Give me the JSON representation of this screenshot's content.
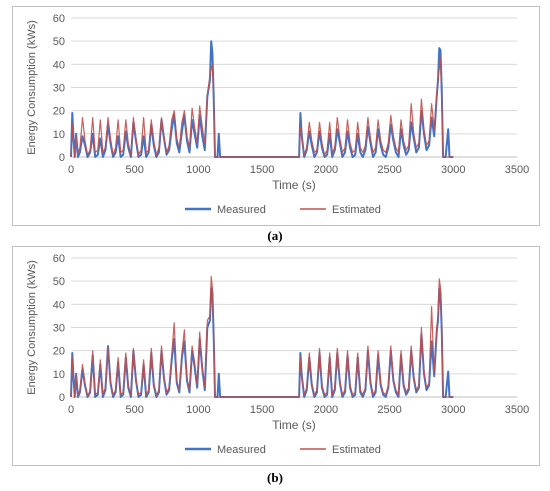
{
  "colors": {
    "measured": "#4472c4",
    "estimated": "#c0504d",
    "grid": "#d9d9d9",
    "axis_text": "#595959"
  },
  "chart_data": [
    {
      "type": "line",
      "caption": "(a)",
      "xlabel": "Time (s)",
      "ylabel": "Energy Consumption (kWs)",
      "xlim": [
        0,
        3500
      ],
      "ylim": [
        0,
        60
      ],
      "x_ticks": [
        0,
        500,
        1000,
        1500,
        2000,
        2500,
        3000,
        3500
      ],
      "y_ticks": [
        0,
        10,
        20,
        30,
        40,
        50,
        60
      ],
      "grid": "horizontal",
      "legend_position": "bottom",
      "series": [
        {
          "name": "Measured",
          "color": "#4472c4",
          "x": [
            0,
            10,
            20,
            30,
            40,
            55,
            70,
            90,
            110,
            130,
            150,
            170,
            190,
            210,
            230,
            250,
            270,
            290,
            310,
            330,
            350,
            370,
            390,
            410,
            430,
            450,
            470,
            490,
            510,
            530,
            550,
            570,
            590,
            610,
            630,
            650,
            670,
            690,
            710,
            730,
            750,
            770,
            790,
            810,
            830,
            850,
            870,
            890,
            910,
            930,
            950,
            970,
            990,
            1010,
            1030,
            1050,
            1070,
            1090,
            1100,
            1110,
            1120,
            1130,
            1150,
            1160,
            1170,
            1200,
            1300,
            1400,
            1500,
            1600,
            1700,
            1790,
            1800,
            1810,
            1830,
            1850,
            1870,
            1890,
            1910,
            1930,
            1950,
            1970,
            1990,
            2010,
            2030,
            2050,
            2070,
            2090,
            2110,
            2130,
            2150,
            2170,
            2190,
            2210,
            2230,
            2250,
            2270,
            2290,
            2310,
            2330,
            2350,
            2370,
            2390,
            2410,
            2430,
            2450,
            2470,
            2490,
            2510,
            2530,
            2550,
            2570,
            2590,
            2610,
            2630,
            2650,
            2670,
            2690,
            2710,
            2730,
            2750,
            2770,
            2790,
            2810,
            2830,
            2850,
            2870,
            2880,
            2890,
            2900,
            2910,
            2920,
            2940,
            2960,
            2970,
            2990,
            3000
          ],
          "y": [
            0,
            19,
            8,
            0,
            10,
            0,
            2,
            9,
            5,
            0,
            2,
            10,
            0,
            1,
            8,
            0,
            3,
            14,
            6,
            0,
            2,
            9,
            0,
            1,
            11,
            4,
            0,
            15,
            7,
            0,
            1,
            9,
            0,
            2,
            14,
            5,
            0,
            2,
            16,
            8,
            1,
            3,
            12,
            18,
            6,
            2,
            11,
            18,
            7,
            2,
            16,
            10,
            4,
            18,
            9,
            3,
            26,
            33,
            50,
            45,
            26,
            0,
            0,
            10,
            0,
            0,
            0,
            0,
            0,
            0,
            0,
            0,
            19,
            10,
            0,
            3,
            11,
            5,
            0,
            2,
            11,
            4,
            0,
            1,
            10,
            0,
            3,
            12,
            6,
            0,
            2,
            11,
            4,
            0,
            1,
            10,
            2,
            0,
            3,
            13,
            6,
            0,
            2,
            12,
            5,
            1,
            0,
            4,
            14,
            7,
            2,
            0,
            12,
            5,
            1,
            3,
            15,
            8,
            2,
            4,
            20,
            10,
            3,
            5,
            17,
            9,
            26,
            33,
            47,
            46,
            28,
            0,
            0,
            12,
            0,
            0,
            0
          ]
        },
        {
          "name": "Estimated",
          "color": "#c0504d",
          "x": [
            0,
            10,
            20,
            30,
            40,
            55,
            70,
            90,
            110,
            130,
            150,
            170,
            190,
            210,
            230,
            250,
            270,
            290,
            310,
            330,
            350,
            370,
            390,
            410,
            430,
            450,
            470,
            490,
            510,
            530,
            550,
            570,
            590,
            610,
            630,
            650,
            670,
            690,
            710,
            730,
            750,
            770,
            790,
            810,
            830,
            850,
            870,
            890,
            910,
            930,
            950,
            970,
            990,
            1010,
            1030,
            1050,
            1070,
            1090,
            1100,
            1110,
            1120,
            1130,
            1150,
            1160,
            1170,
            1200,
            1300,
            1400,
            1500,
            1600,
            1700,
            1790,
            1800,
            1810,
            1830,
            1850,
            1870,
            1890,
            1910,
            1930,
            1950,
            1970,
            1990,
            2010,
            2030,
            2050,
            2070,
            2090,
            2110,
            2130,
            2150,
            2170,
            2190,
            2210,
            2230,
            2250,
            2270,
            2290,
            2310,
            2330,
            2350,
            2370,
            2390,
            2410,
            2430,
            2450,
            2470,
            2490,
            2510,
            2530,
            2550,
            2570,
            2590,
            2610,
            2630,
            2650,
            2670,
            2690,
            2710,
            2730,
            2750,
            2770,
            2790,
            2810,
            2830,
            2850,
            2870,
            2880,
            2890,
            2900,
            2910,
            2920,
            2940,
            2960,
            2970,
            2990,
            3000
          ],
          "y": [
            0,
            14,
            6,
            0,
            9,
            2,
            4,
            17,
            7,
            1,
            3,
            17,
            2,
            3,
            16,
            2,
            4,
            17,
            8,
            1,
            4,
            16,
            2,
            3,
            16,
            6,
            1,
            17,
            8,
            1,
            3,
            17,
            2,
            3,
            16,
            7,
            1,
            4,
            17,
            9,
            2,
            5,
            16,
            20,
            8,
            4,
            15,
            20,
            9,
            4,
            21,
            13,
            6,
            22,
            13,
            6,
            27,
            35,
            38,
            40,
            24,
            0,
            0,
            0,
            0,
            0,
            0,
            0,
            0,
            0,
            0,
            0,
            13,
            9,
            1,
            4,
            15,
            7,
            2,
            3,
            15,
            6,
            1,
            3,
            15,
            2,
            4,
            17,
            8,
            2,
            4,
            16,
            6,
            2,
            3,
            15,
            4,
            2,
            5,
            17,
            8,
            2,
            4,
            16,
            7,
            3,
            2,
            6,
            18,
            9,
            4,
            2,
            16,
            7,
            3,
            5,
            23,
            10,
            4,
            6,
            25,
            12,
            5,
            7,
            23,
            12,
            27,
            34,
            38,
            43,
            24,
            0,
            0,
            0,
            0,
            0,
            0
          ]
        }
      ]
    },
    {
      "type": "line",
      "caption": "(b)",
      "xlabel": "Time (s)",
      "ylabel": "Energy Consumption (kWs)",
      "xlim": [
        0,
        3500
      ],
      "ylim": [
        0,
        60
      ],
      "x_ticks": [
        0,
        500,
        1000,
        1500,
        2000,
        2500,
        3000,
        3500
      ],
      "y_ticks": [
        0,
        10,
        20,
        30,
        40,
        50,
        60
      ],
      "grid": "horizontal",
      "legend_position": "bottom",
      "series": [
        {
          "name": "Measured",
          "color": "#4472c4",
          "x": [
            0,
            10,
            20,
            30,
            40,
            55,
            70,
            90,
            110,
            130,
            150,
            170,
            190,
            210,
            230,
            250,
            270,
            290,
            310,
            330,
            350,
            370,
            390,
            410,
            430,
            450,
            470,
            490,
            510,
            530,
            550,
            570,
            590,
            610,
            630,
            650,
            670,
            690,
            710,
            730,
            750,
            770,
            790,
            810,
            830,
            850,
            870,
            890,
            910,
            930,
            950,
            970,
            990,
            1010,
            1030,
            1050,
            1070,
            1090,
            1100,
            1110,
            1120,
            1130,
            1150,
            1160,
            1170,
            1200,
            1300,
            1400,
            1500,
            1600,
            1700,
            1790,
            1800,
            1810,
            1830,
            1850,
            1870,
            1890,
            1910,
            1930,
            1950,
            1970,
            1990,
            2010,
            2030,
            2050,
            2070,
            2090,
            2110,
            2130,
            2150,
            2170,
            2190,
            2210,
            2230,
            2250,
            2270,
            2290,
            2310,
            2330,
            2350,
            2370,
            2390,
            2410,
            2430,
            2450,
            2470,
            2490,
            2510,
            2530,
            2550,
            2570,
            2590,
            2610,
            2630,
            2650,
            2670,
            2690,
            2710,
            2730,
            2750,
            2770,
            2790,
            2810,
            2830,
            2850,
            2870,
            2880,
            2890,
            2900,
            2910,
            2920,
            2940,
            2960,
            2970,
            2990,
            3000
          ],
          "y": [
            0,
            19,
            8,
            0,
            10,
            0,
            2,
            12,
            5,
            0,
            2,
            18,
            0,
            1,
            14,
            0,
            3,
            22,
            6,
            0,
            2,
            15,
            0,
            1,
            17,
            4,
            0,
            20,
            7,
            0,
            1,
            14,
            0,
            2,
            19,
            5,
            0,
            2,
            20,
            8,
            1,
            3,
            16,
            25,
            6,
            2,
            17,
            24,
            7,
            2,
            20,
            13,
            4,
            25,
            12,
            3,
            30,
            33,
            47,
            45,
            26,
            0,
            0,
            10,
            0,
            0,
            0,
            0,
            0,
            0,
            0,
            0,
            19,
            10,
            0,
            3,
            17,
            5,
            0,
            2,
            19,
            4,
            0,
            1,
            17,
            0,
            3,
            19,
            6,
            0,
            2,
            18,
            4,
            0,
            1,
            17,
            2,
            0,
            3,
            20,
            6,
            0,
            2,
            18,
            5,
            1,
            0,
            4,
            20,
            7,
            2,
            0,
            18,
            5,
            1,
            3,
            20,
            8,
            2,
            4,
            27,
            10,
            3,
            5,
            24,
            9,
            28,
            33,
            47,
            45,
            28,
            0,
            0,
            11,
            0,
            0,
            0
          ]
        },
        {
          "name": "Estimated",
          "color": "#c0504d",
          "x": [
            0,
            10,
            20,
            30,
            40,
            55,
            70,
            90,
            110,
            130,
            150,
            170,
            190,
            210,
            230,
            250,
            270,
            290,
            310,
            330,
            350,
            370,
            390,
            410,
            430,
            450,
            470,
            490,
            510,
            530,
            550,
            570,
            590,
            610,
            630,
            650,
            670,
            690,
            710,
            730,
            750,
            770,
            790,
            810,
            830,
            850,
            870,
            890,
            910,
            930,
            950,
            970,
            990,
            1010,
            1030,
            1050,
            1070,
            1090,
            1100,
            1110,
            1120,
            1130,
            1150,
            1160,
            1170,
            1200,
            1300,
            1400,
            1500,
            1600,
            1700,
            1790,
            1800,
            1810,
            1830,
            1850,
            1870,
            1890,
            1910,
            1930,
            1950,
            1970,
            1990,
            2010,
            2030,
            2050,
            2070,
            2090,
            2110,
            2130,
            2150,
            2170,
            2190,
            2210,
            2230,
            2250,
            2270,
            2290,
            2310,
            2330,
            2350,
            2370,
            2390,
            2410,
            2430,
            2450,
            2470,
            2490,
            2510,
            2530,
            2550,
            2570,
            2590,
            2610,
            2630,
            2650,
            2670,
            2690,
            2710,
            2730,
            2750,
            2770,
            2790,
            2810,
            2830,
            2850,
            2870,
            2880,
            2890,
            2900,
            2910,
            2920,
            2940,
            2960,
            2970,
            2990,
            3000
          ],
          "y": [
            0,
            17,
            7,
            0,
            9,
            1,
            3,
            14,
            6,
            0,
            3,
            20,
            1,
            2,
            16,
            1,
            4,
            21,
            7,
            1,
            3,
            17,
            1,
            2,
            19,
            5,
            1,
            21,
            8,
            1,
            2,
            16,
            1,
            3,
            21,
            6,
            1,
            3,
            22,
            9,
            2,
            4,
            18,
            32,
            7,
            3,
            19,
            29,
            8,
            3,
            22,
            15,
            5,
            28,
            13,
            4,
            33,
            35,
            52,
            47,
            27,
            0,
            0,
            0,
            0,
            0,
            0,
            0,
            0,
            0,
            0,
            0,
            17,
            9,
            1,
            4,
            19,
            6,
            1,
            3,
            21,
            5,
            1,
            2,
            19,
            1,
            4,
            21,
            7,
            1,
            3,
            20,
            5,
            1,
            2,
            19,
            3,
            1,
            4,
            22,
            7,
            1,
            3,
            20,
            6,
            2,
            1,
            5,
            22,
            8,
            3,
            1,
            20,
            6,
            2,
            4,
            22,
            9,
            3,
            5,
            30,
            11,
            4,
            6,
            39,
            10,
            30,
            35,
            51,
            47,
            29,
            0,
            0,
            0,
            0,
            0,
            0
          ]
        }
      ]
    }
  ]
}
